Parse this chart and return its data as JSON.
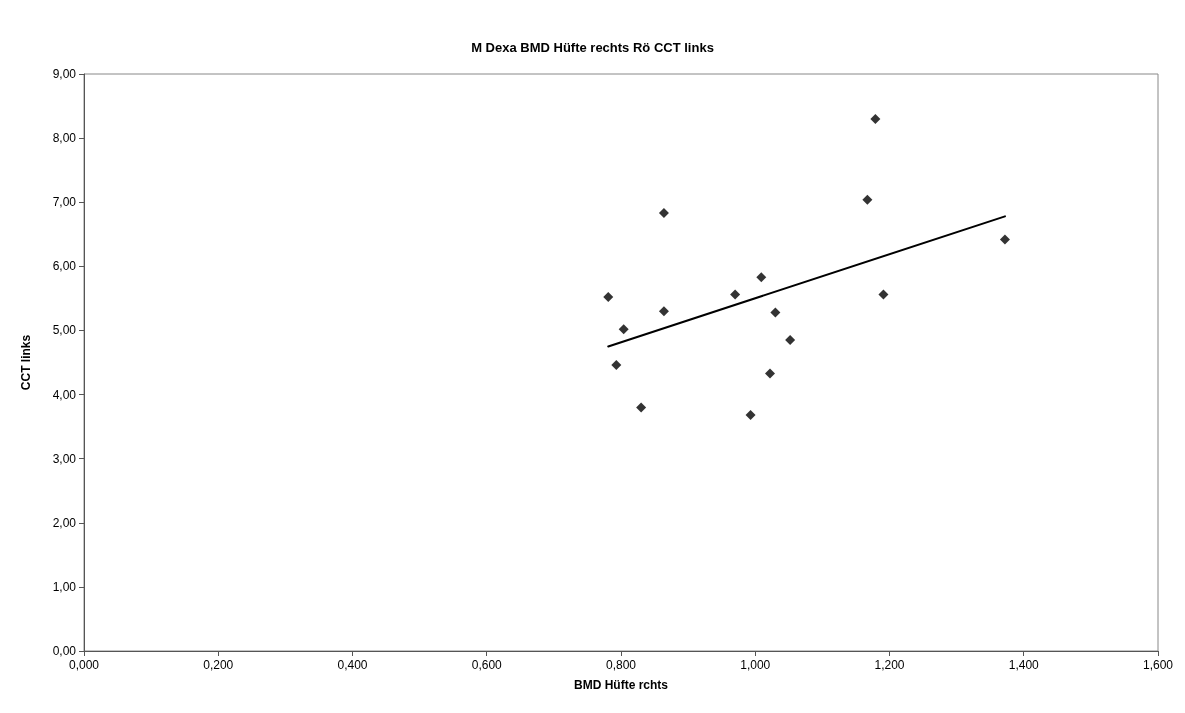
{
  "chart_data": {
    "type": "scatter",
    "title": "M Dexa BMD Hüfte rechts Rö CCT links",
    "xlabel": "BMD Hüfte rchts",
    "ylabel": "CCT links",
    "marker": "diamond",
    "grid": false,
    "xlim": [
      0,
      1.6
    ],
    "ylim": [
      0,
      9
    ],
    "xticks": [
      {
        "value": 0,
        "label": "0,000"
      },
      {
        "value": 0.2,
        "label": "0,200"
      },
      {
        "value": 0.4,
        "label": "0,400"
      },
      {
        "value": 0.6,
        "label": "0,600"
      },
      {
        "value": 0.8,
        "label": "0,800"
      },
      {
        "value": 1,
        "label": "1,000"
      },
      {
        "value": 1.2,
        "label": "1,200"
      },
      {
        "value": 1.4,
        "label": "1,400"
      },
      {
        "value": 1.6,
        "label": "1,600"
      }
    ],
    "yticks": [
      {
        "value": 0,
        "label": "0,00"
      },
      {
        "value": 1,
        "label": "1,00"
      },
      {
        "value": 2,
        "label": "2,00"
      },
      {
        "value": 3,
        "label": "3,00"
      },
      {
        "value": 4,
        "label": "4,00"
      },
      {
        "value": 5,
        "label": "5,00"
      },
      {
        "value": 6,
        "label": "6,00"
      },
      {
        "value": 7,
        "label": "7,00"
      },
      {
        "value": 8,
        "label": "8,00"
      },
      {
        "value": 9,
        "label": "9,00"
      }
    ],
    "series": [
      {
        "color": "#000000",
        "x": [
          0.781,
          0.804,
          0.793,
          0.83,
          0.864,
          0.864,
          0.97,
          1.009,
          1.03,
          1.052,
          1.022,
          0.993,
          1.167,
          1.191,
          1.372,
          1.179
        ],
        "values": [
          5.52,
          5.02,
          4.46,
          3.8,
          6.83,
          5.3,
          5.56,
          5.83,
          5.28,
          4.85,
          4.33,
          3.68,
          7.04,
          5.56,
          6.42,
          8.3
        ]
      },
      {
        "type": "line",
        "color": "#000000",
        "marker": "none",
        "line_style": "solid",
        "x": [
          0.781,
          1.372
        ],
        "values": [
          4.75,
          6.78
        ]
      }
    ]
  }
}
